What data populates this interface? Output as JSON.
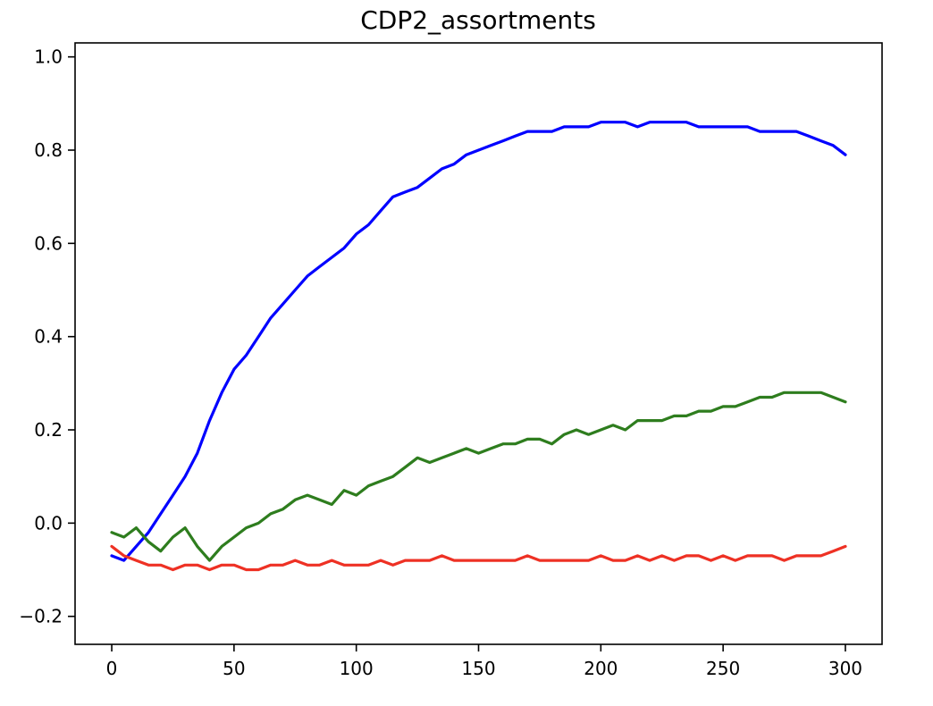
{
  "chart_data": {
    "type": "line",
    "title": "CDP2_assortments",
    "xlabel": "",
    "ylabel": "",
    "xlim": [
      -15,
      315
    ],
    "ylim": [
      -0.26,
      1.03
    ],
    "grid": false,
    "x_ticks": [
      0,
      50,
      100,
      150,
      200,
      250,
      300
    ],
    "x_tick_labels": [
      "0",
      "50",
      "100",
      "150",
      "200",
      "250",
      "300"
    ],
    "y_ticks": [
      -0.2,
      0.0,
      0.2,
      0.4,
      0.6,
      0.8,
      1.0
    ],
    "y_tick_labels": [
      "−0.2",
      "0.0",
      "0.2",
      "0.4",
      "0.6",
      "0.8",
      "1.0"
    ],
    "x_start": 0,
    "x_step": 5,
    "series": [
      {
        "name": "blue",
        "color": "#0000ff",
        "values": [
          -0.07,
          -0.08,
          -0.05,
          -0.02,
          0.02,
          0.06,
          0.1,
          0.15,
          0.22,
          0.28,
          0.33,
          0.36,
          0.4,
          0.44,
          0.47,
          0.5,
          0.53,
          0.55,
          0.57,
          0.59,
          0.62,
          0.64,
          0.67,
          0.7,
          0.71,
          0.72,
          0.74,
          0.76,
          0.77,
          0.79,
          0.8,
          0.81,
          0.82,
          0.83,
          0.84,
          0.84,
          0.84,
          0.85,
          0.85,
          0.85,
          0.86,
          0.86,
          0.86,
          0.85,
          0.86,
          0.86,
          0.86,
          0.86,
          0.85,
          0.85,
          0.85,
          0.85,
          0.85,
          0.84,
          0.84,
          0.84,
          0.84,
          0.83,
          0.82,
          0.81,
          0.79
        ]
      },
      {
        "name": "green",
        "color": "#2e7d1e",
        "values": [
          -0.02,
          -0.03,
          -0.01,
          -0.04,
          -0.06,
          -0.03,
          -0.01,
          -0.05,
          -0.08,
          -0.05,
          -0.03,
          -0.01,
          0.0,
          0.02,
          0.03,
          0.05,
          0.06,
          0.05,
          0.04,
          0.07,
          0.06,
          0.08,
          0.09,
          0.1,
          0.12,
          0.14,
          0.13,
          0.14,
          0.15,
          0.16,
          0.15,
          0.16,
          0.17,
          0.17,
          0.18,
          0.18,
          0.17,
          0.19,
          0.2,
          0.19,
          0.2,
          0.21,
          0.2,
          0.22,
          0.22,
          0.22,
          0.23,
          0.23,
          0.24,
          0.24,
          0.25,
          0.25,
          0.26,
          0.27,
          0.27,
          0.28,
          0.28,
          0.28,
          0.28,
          0.27,
          0.26
        ]
      },
      {
        "name": "red",
        "color": "#ee3124",
        "values": [
          -0.05,
          -0.07,
          -0.08,
          -0.09,
          -0.09,
          -0.1,
          -0.09,
          -0.09,
          -0.1,
          -0.09,
          -0.09,
          -0.1,
          -0.1,
          -0.09,
          -0.09,
          -0.08,
          -0.09,
          -0.09,
          -0.08,
          -0.09,
          -0.09,
          -0.09,
          -0.08,
          -0.09,
          -0.08,
          -0.08,
          -0.08,
          -0.07,
          -0.08,
          -0.08,
          -0.08,
          -0.08,
          -0.08,
          -0.08,
          -0.07,
          -0.08,
          -0.08,
          -0.08,
          -0.08,
          -0.08,
          -0.07,
          -0.08,
          -0.08,
          -0.07,
          -0.08,
          -0.07,
          -0.08,
          -0.07,
          -0.07,
          -0.08,
          -0.07,
          -0.08,
          -0.07,
          -0.07,
          -0.07,
          -0.08,
          -0.07,
          -0.07,
          -0.07,
          -0.06,
          -0.05
        ]
      }
    ]
  }
}
